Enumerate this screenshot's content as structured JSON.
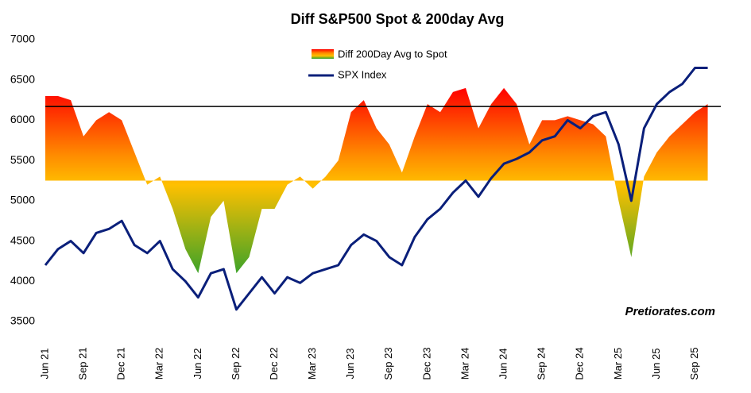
{
  "chart_data": {
    "type": "line",
    "title": "Diff S&P500 Spot & 200day Avg",
    "annotation": "Pretiorates.com",
    "categories": [
      "Jun 21",
      null,
      null,
      "Sep 21",
      null,
      null,
      "Dec 21",
      null,
      null,
      "Mar 22",
      null,
      null,
      "Jun 22",
      null,
      null,
      "Sep 22",
      null,
      null,
      "Dec 22",
      null,
      null,
      "Mar 23",
      null,
      null,
      "Jun 23",
      null,
      null,
      "Sep 23",
      null,
      null,
      "Dec 23",
      null,
      null,
      "Mar 24",
      null,
      null,
      "Jun 24",
      null,
      null,
      "Sep 24",
      null,
      null,
      "Dec 24",
      null,
      null,
      "Mar 25",
      null,
      null,
      "Jun 25",
      null,
      null,
      "Sep 25",
      null
    ],
    "series": [
      {
        "name": "Diff 200Day Avg to Spot",
        "kind": "area",
        "base": 5250,
        "gradient": [
          "#ff0000",
          "#ff8c00",
          "#ffc000",
          "#2ca02c"
        ],
        "values": [
          6300,
          6300,
          6250,
          5800,
          6000,
          6100,
          6000,
          5600,
          5200,
          5300,
          4900,
          4400,
          4100,
          4800,
          5000,
          4100,
          4300,
          4900,
          4900,
          5200,
          5300,
          5150,
          5300,
          5500,
          6100,
          6250,
          5900,
          5700,
          5350,
          5800,
          6200,
          6100,
          6350,
          6400,
          5900,
          6200,
          6400,
          6200,
          5700,
          6000,
          6000,
          6050,
          6000,
          5950,
          5800,
          5000,
          4300,
          5300,
          5600,
          5800,
          5950,
          6100,
          6200
        ]
      },
      {
        "name": "SPX Index",
        "kind": "line",
        "color": "#0a1f7a",
        "values": [
          4200,
          4400,
          4500,
          4350,
          4600,
          4650,
          4750,
          4450,
          4350,
          4500,
          4150,
          4000,
          3800,
          4100,
          4150,
          3650,
          3850,
          4050,
          3850,
          4050,
          3980,
          4100,
          4150,
          4200,
          4450,
          4580,
          4500,
          4300,
          4200,
          4550,
          4770,
          4900,
          5100,
          5250,
          5050,
          5280,
          5460,
          5520,
          5600,
          5750,
          5800,
          6000,
          5900,
          6050,
          6100,
          5700,
          5000,
          5900,
          6200,
          6350,
          6450,
          6650,
          6650
        ]
      }
    ],
    "hline": 6170,
    "ylim": [
      3500,
      7000
    ],
    "yticks": [
      3500,
      4000,
      4500,
      5000,
      5500,
      6000,
      6500,
      7000
    ]
  }
}
